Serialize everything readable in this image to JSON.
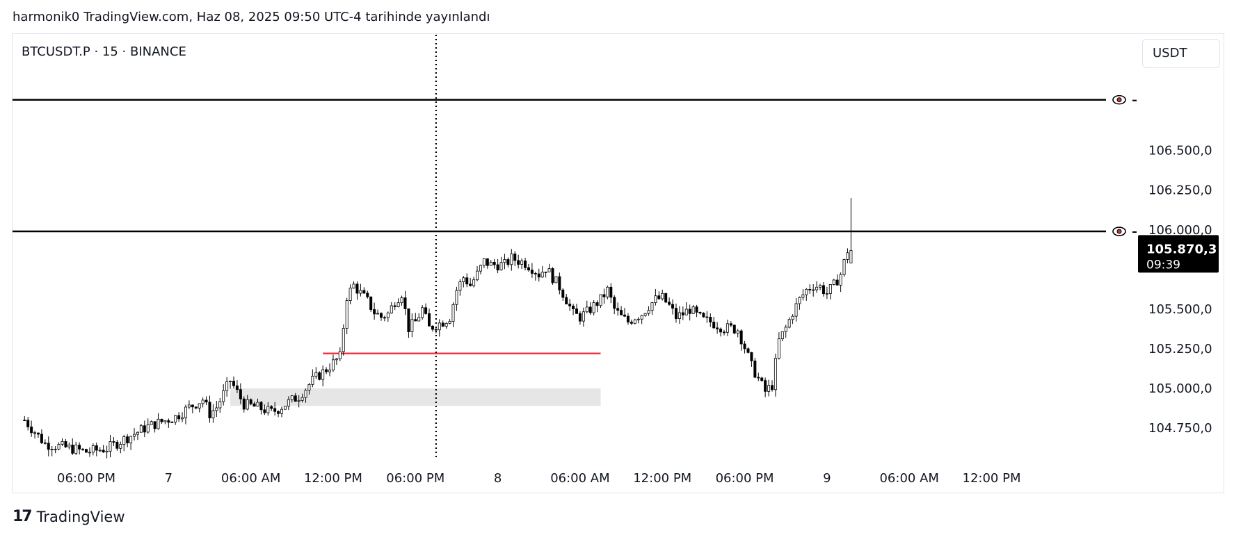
{
  "header": {
    "published_text": "harmonik0 TradingView.com, Haz 08, 2025 09:50 UTC-4 tarihinde yayınlandı"
  },
  "symbol_label": "BTCUSDT.P · 15 · BINANCE",
  "currency_button": "USDT",
  "footer": {
    "logo_mark": "17",
    "logo_text": "TradingView"
  },
  "price_badge": {
    "price": "105.870,3",
    "countdown": "09:39"
  },
  "colors": {
    "up_candle_fill": "#ffffff",
    "down_candle_fill": "#000000",
    "candle_outline": "#000000",
    "support_line": "#f23645",
    "zone_fill": "#e6e6e6",
    "horizontal_line": "#000000",
    "badge_bg": "#000000",
    "badge_text": "#ffffff"
  },
  "chart_data": {
    "type": "candlestick",
    "symbol": "BTCUSDT.P",
    "interval": "15",
    "exchange": "BINANCE",
    "ylim": [
      104600,
      106900
    ],
    "y_ticks": [
      {
        "value": 106500,
        "label": "106.500,0"
      },
      {
        "value": 106250,
        "label": "106.250,0"
      },
      {
        "value": 106000,
        "label": "106.000,0"
      },
      {
        "value": 105500,
        "label": "105.500,0"
      },
      {
        "value": 105250,
        "label": "105.250,0"
      },
      {
        "value": 105000,
        "label": "105.000,0"
      },
      {
        "value": 104750,
        "label": "104.750,0"
      }
    ],
    "x_ticks": [
      "06:00 PM",
      "7",
      "06:00 AM",
      "12:00 PM",
      "06:00 PM",
      "8",
      "06:00 AM",
      "12:00 PM",
      "06:00 PM",
      "9",
      "06:00 AM",
      "12:00 PM"
    ],
    "x_tick_bar_index": [
      0,
      24,
      48,
      72,
      96,
      120,
      144,
      168,
      192,
      216,
      240,
      264
    ],
    "first_bar_index": -18,
    "bar_spacing_per_index": 4.93,
    "close_path": [
      [
        -18,
        104800
      ],
      [
        -12,
        104650
      ],
      [
        -4,
        104620
      ],
      [
        0,
        104600
      ],
      [
        6,
        104620
      ],
      [
        12,
        104690
      ],
      [
        18,
        104760
      ],
      [
        26,
        104820
      ],
      [
        30,
        104880
      ],
      [
        34,
        104930
      ],
      [
        36,
        104840
      ],
      [
        38,
        104880
      ],
      [
        42,
        105050
      ],
      [
        46,
        104900
      ],
      [
        50,
        104880
      ],
      [
        54,
        104850
      ],
      [
        56,
        104870
      ],
      [
        58,
        104900
      ],
      [
        62,
        104950
      ],
      [
        66,
        105050
      ],
      [
        70,
        105120
      ],
      [
        74,
        105200
      ],
      [
        76,
        105580
      ],
      [
        78,
        105650
      ],
      [
        80,
        105600
      ],
      [
        82,
        105550
      ],
      [
        84,
        105480
      ],
      [
        86,
        105450
      ],
      [
        88,
        105470
      ],
      [
        90,
        105550
      ],
      [
        92,
        105600
      ],
      [
        94,
        105380
      ],
      [
        96,
        105420
      ],
      [
        98,
        105500
      ],
      [
        100,
        105380
      ],
      [
        104,
        105420
      ],
      [
        106,
        105450
      ],
      [
        108,
        105620
      ],
      [
        110,
        105700
      ],
      [
        112,
        105650
      ],
      [
        114,
        105720
      ],
      [
        116,
        105800
      ],
      [
        118,
        105780
      ],
      [
        122,
        105780
      ],
      [
        124,
        105820
      ],
      [
        128,
        105790
      ],
      [
        130,
        105760
      ],
      [
        132,
        105720
      ],
      [
        134,
        105760
      ],
      [
        136,
        105700
      ],
      [
        138,
        105640
      ],
      [
        140,
        105560
      ],
      [
        142,
        105470
      ],
      [
        144,
        105450
      ],
      [
        146,
        105480
      ],
      [
        148,
        105520
      ],
      [
        150,
        105560
      ],
      [
        152,
        105620
      ],
      [
        154,
        105500
      ],
      [
        156,
        105450
      ],
      [
        158,
        105420
      ],
      [
        160,
        105450
      ],
      [
        162,
        105470
      ],
      [
        164,
        105520
      ],
      [
        166,
        105560
      ],
      [
        168,
        105570
      ],
      [
        170,
        105520
      ],
      [
        172,
        105450
      ],
      [
        174,
        105470
      ],
      [
        176,
        105500
      ],
      [
        178,
        105460
      ],
      [
        180,
        105430
      ],
      [
        182,
        105420
      ],
      [
        184,
        105400
      ],
      [
        186,
        105380
      ],
      [
        188,
        105380
      ],
      [
        190,
        105370
      ],
      [
        192,
        105260
      ],
      [
        194,
        105140
      ],
      [
        196,
        105060
      ],
      [
        198,
        104980
      ],
      [
        200,
        105020
      ],
      [
        202,
        105300
      ],
      [
        204,
        105380
      ],
      [
        206,
        105480
      ],
      [
        208,
        105560
      ],
      [
        210,
        105620
      ],
      [
        212,
        105650
      ],
      [
        214,
        105640
      ],
      [
        216,
        105600
      ],
      [
        218,
        105650
      ],
      [
        220,
        105720
      ],
      [
        222,
        105870
      ]
    ],
    "last_candle": {
      "bar_index": 223,
      "open": 105790,
      "high": 106200,
      "low": 105790,
      "close": 105870
    },
    "horizontal_lines": [
      {
        "price": 106820,
        "style": "solid",
        "visibility_icon": "eye-icon"
      },
      {
        "price": 105990,
        "style": "solid",
        "visibility_icon": "eye-icon"
      }
    ],
    "support_segment": {
      "price": 105220,
      "from_bar_index": 69,
      "to_bar_index": 150
    },
    "demand_zone": {
      "price_top": 105000,
      "price_bottom": 104890,
      "from_bar_index": 42,
      "to_bar_index": 150
    },
    "vertical_marker": {
      "bar_index": 102,
      "style": "dotted"
    },
    "current_price": 105870.3
  }
}
